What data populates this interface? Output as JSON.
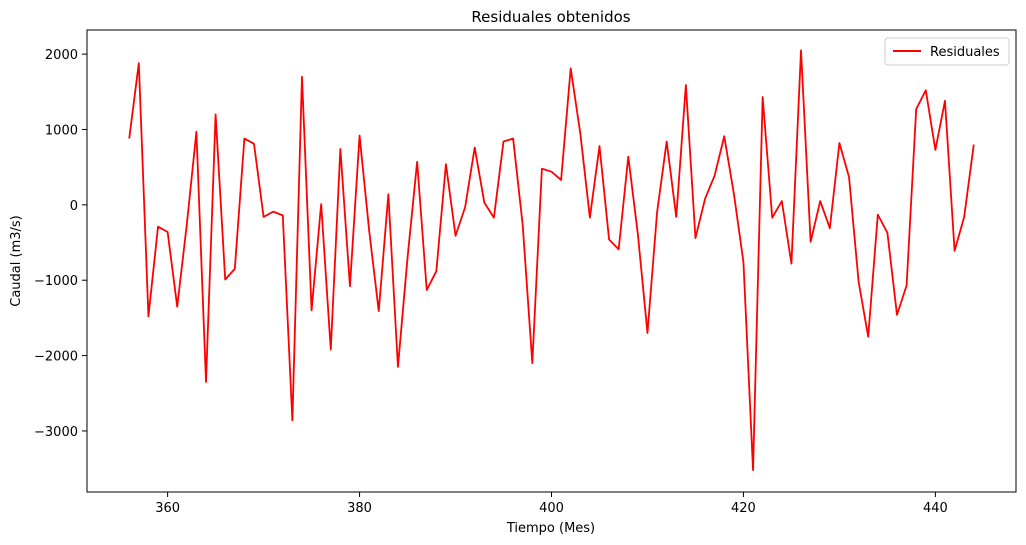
{
  "chart_data": {
    "type": "line",
    "title": "Residuales obtenidos",
    "xlabel": "Tiempo (Mes)",
    "ylabel": "Caudal (m3/s)",
    "xlim": [
      351.6,
      448.4
    ],
    "ylim": [
      -3810,
      2320
    ],
    "xticks": [
      360,
      380,
      400,
      420,
      440
    ],
    "yticks": [
      -3000,
      -2000,
      -1000,
      0,
      1000,
      2000
    ],
    "grid": false,
    "legend_position": "top-right",
    "series": [
      {
        "name": "Residuales",
        "color": "#ff0000",
        "x": [
          356,
          357,
          358,
          359,
          360,
          361,
          362,
          363,
          364,
          365,
          366,
          367,
          368,
          369,
          370,
          371,
          372,
          373,
          374,
          375,
          376,
          377,
          378,
          379,
          380,
          381,
          382,
          383,
          384,
          385,
          386,
          387,
          388,
          389,
          390,
          391,
          392,
          393,
          394,
          395,
          396,
          397,
          398,
          399,
          400,
          401,
          402,
          403,
          404,
          405,
          406,
          407,
          408,
          409,
          410,
          411,
          412,
          413,
          414,
          415,
          416,
          417,
          418,
          419,
          420,
          421,
          422,
          423,
          424,
          425,
          426,
          427,
          428,
          429,
          430,
          431,
          432,
          433,
          434,
          435,
          436,
          437,
          438,
          439,
          440,
          441,
          442,
          443,
          444
        ],
        "y": [
          880,
          1880,
          -1480,
          -290,
          -360,
          -1350,
          -260,
          970,
          -2350,
          1200,
          -990,
          -850,
          880,
          810,
          -160,
          -90,
          -140,
          -2860,
          1700,
          -1400,
          10,
          -1920,
          740,
          -1080,
          920,
          -340,
          -1410,
          140,
          -2150,
          -700,
          570,
          -1130,
          -880,
          540,
          -410,
          -30,
          760,
          30,
          -170,
          840,
          880,
          -270,
          -2100,
          480,
          440,
          330,
          1810,
          950,
          -170,
          780,
          -460,
          -590,
          640,
          -390,
          -1700,
          -100,
          840,
          -160,
          1590,
          -440,
          80,
          390,
          910,
          150,
          -760,
          -3520,
          1430,
          -170,
          50,
          -780,
          2050,
          -490,
          50,
          -310,
          820,
          370,
          -1020,
          -1750,
          -130,
          -370,
          -1460,
          -1070,
          1270,
          1520,
          730,
          1380,
          -610,
          -160,
          800
        ]
      }
    ]
  }
}
